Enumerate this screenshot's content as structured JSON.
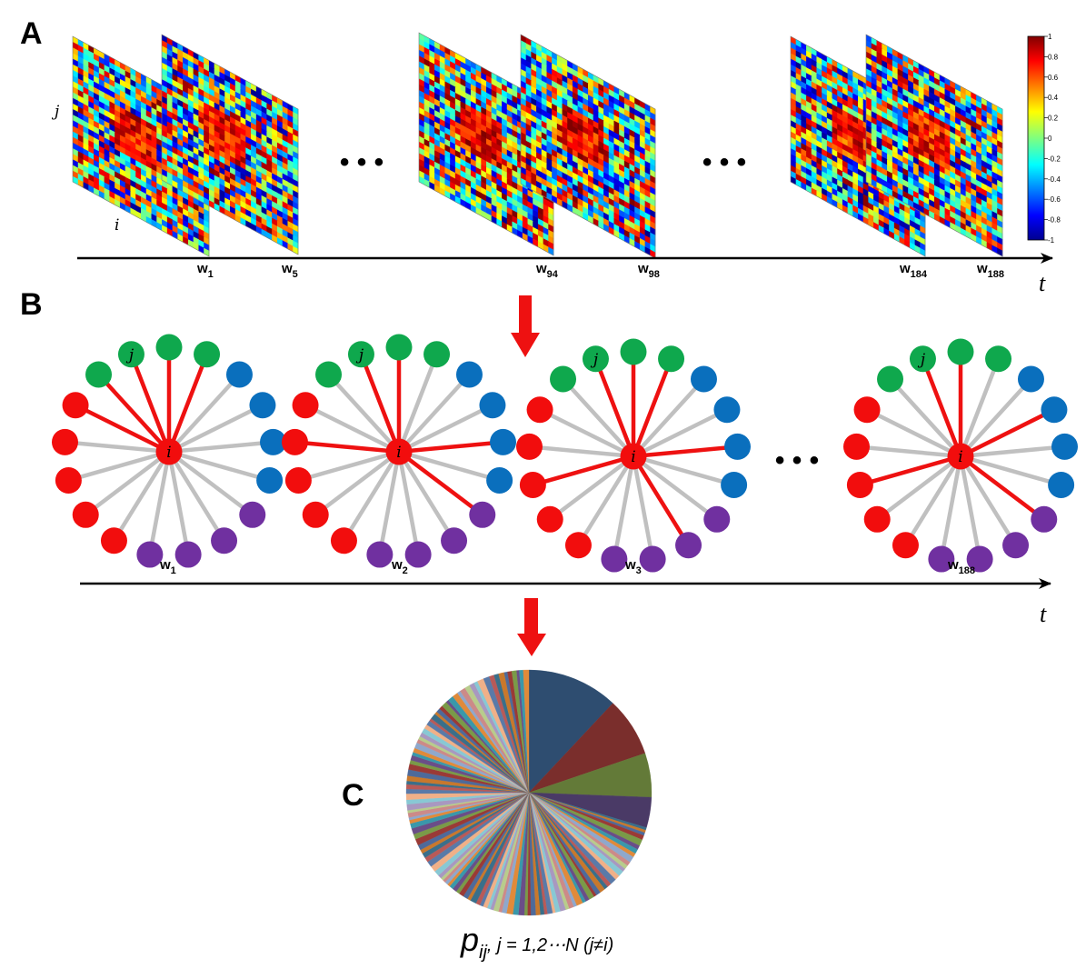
{
  "panels": {
    "a": "A",
    "b": "B",
    "c": "C"
  },
  "matrix_labels": {
    "j": "j",
    "i": "i"
  },
  "time_axis_label": "t",
  "window_labels_a": [
    {
      "base": "w",
      "sub": "1"
    },
    {
      "base": "w",
      "sub": "5"
    },
    {
      "base": "w",
      "sub": "94"
    },
    {
      "base": "w",
      "sub": "98"
    },
    {
      "base": "w",
      "sub": "184"
    },
    {
      "base": "w",
      "sub": "188"
    }
  ],
  "window_labels_b": [
    {
      "base": "w",
      "sub": "1"
    },
    {
      "base": "w",
      "sub": "2"
    },
    {
      "base": "w",
      "sub": "3"
    },
    {
      "base": "w",
      "sub": "188"
    }
  ],
  "ellipsis": "• • •",
  "colorbar": {
    "ticks": [
      "1",
      "0.8",
      "0.6",
      "0.4",
      "0.2",
      "0",
      "-0.2",
      "-0.4",
      "-0.6",
      "-0.8",
      "-1"
    ]
  },
  "network": {
    "center_label": "i",
    "neighbor_label": "j",
    "node_colors": {
      "red": "#f20d0d",
      "green": "#0fa84d",
      "blue": "#0a6fbd",
      "purple": "#7030a0"
    },
    "edge_colors": {
      "strong": "#ee1111",
      "weak": "#c0c0c0"
    }
  },
  "formula": {
    "p": "p",
    "sub": "ij",
    "rest": ", j = 1,2⋯N (j≠i)"
  }
}
